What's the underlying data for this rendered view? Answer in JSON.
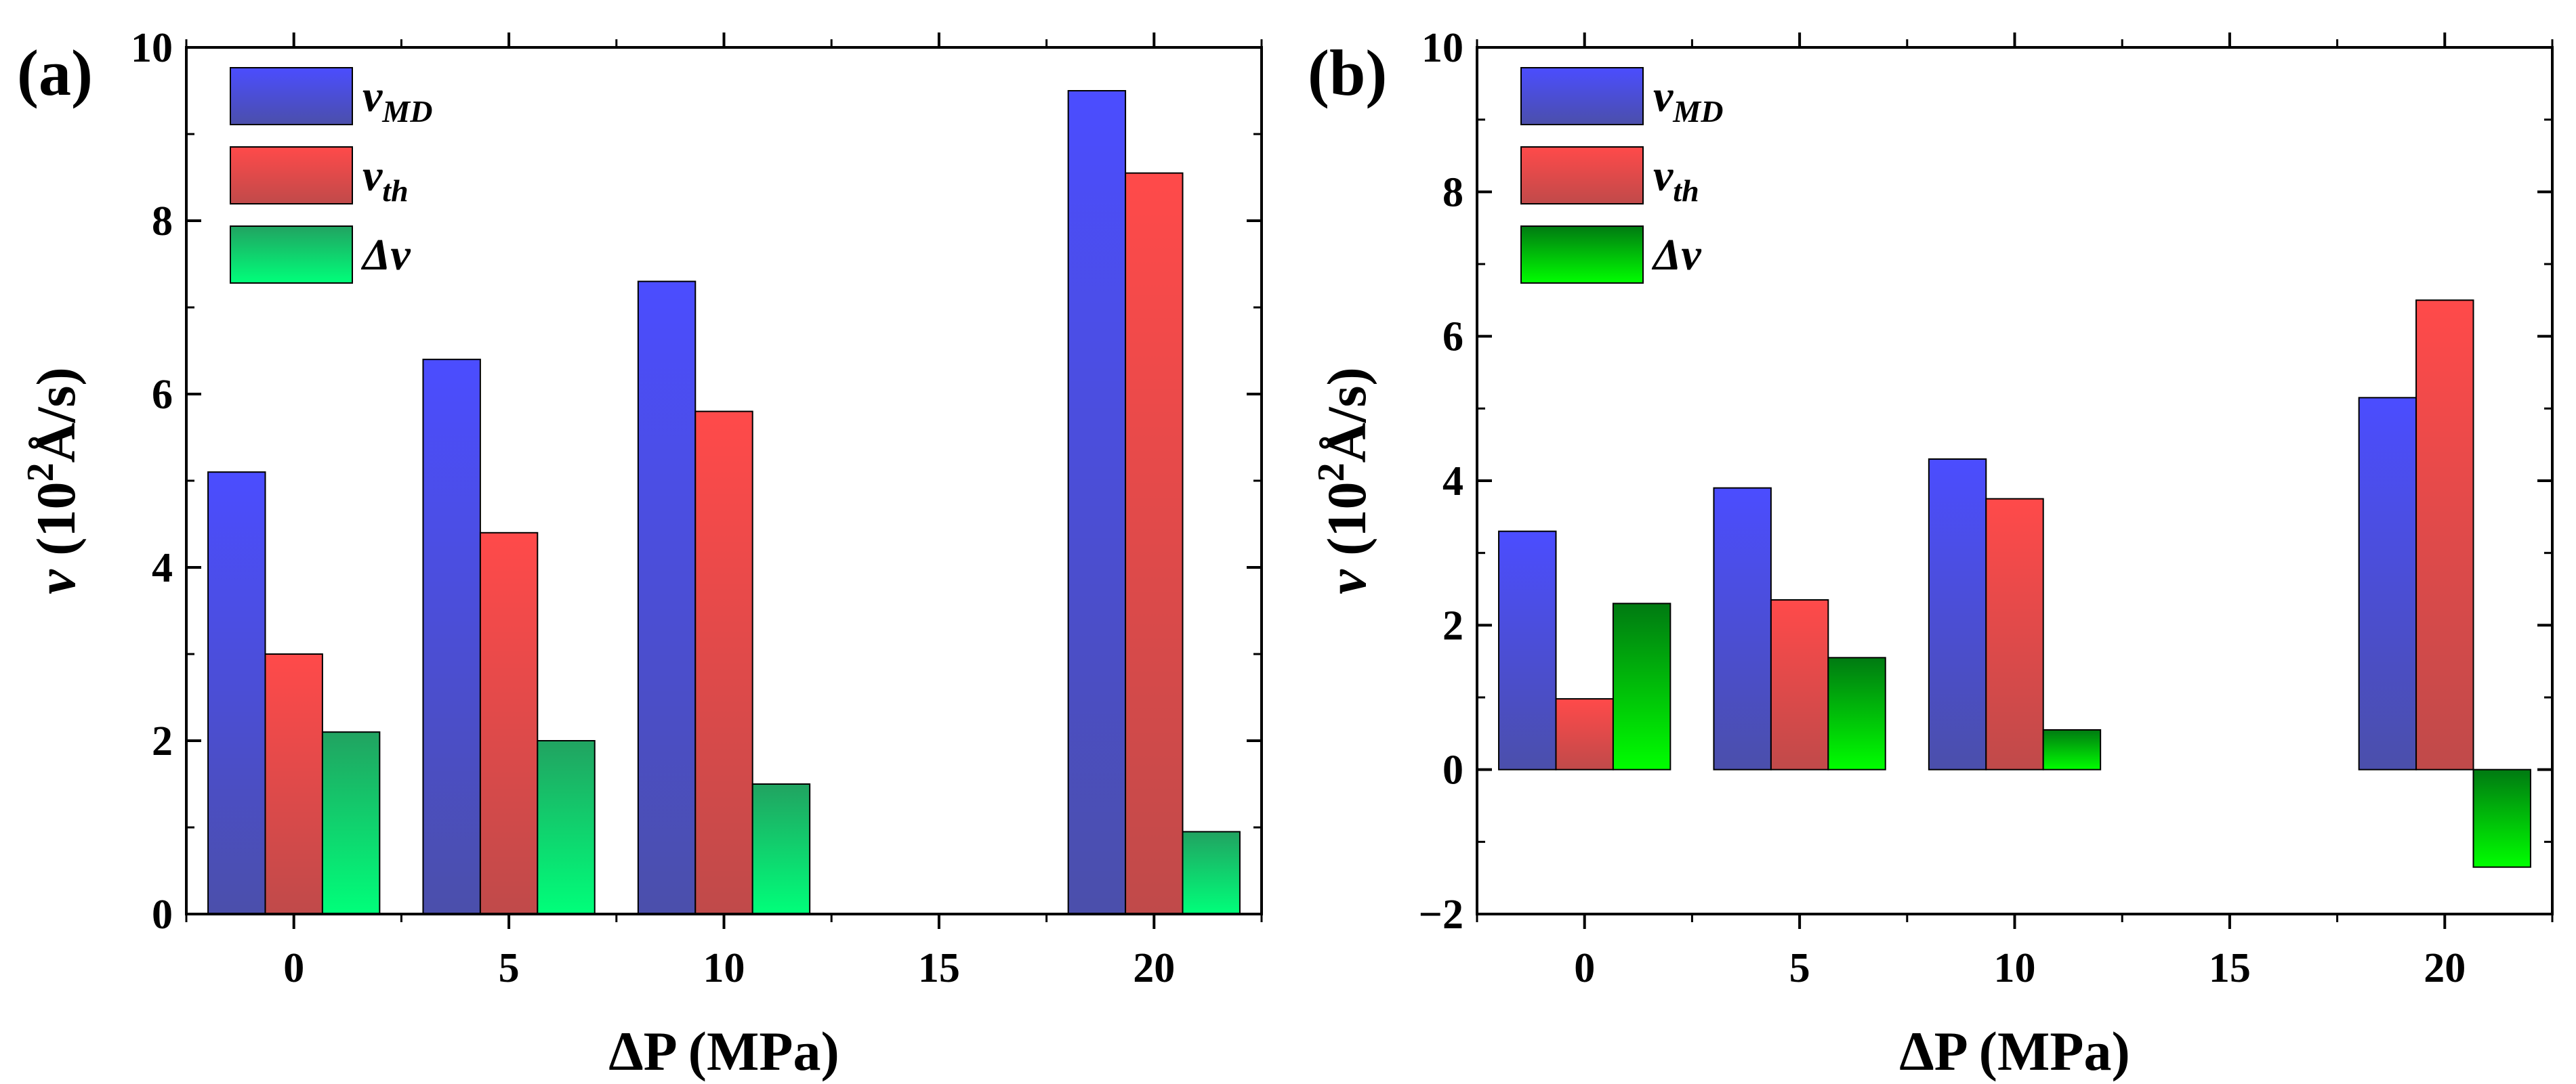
{
  "figure": {
    "panels": [
      "(a)",
      "(b)"
    ]
  },
  "chart_data": [
    {
      "type": "bar",
      "panel_label": "(a)",
      "categories": [
        "0",
        "5",
        "10",
        "20"
      ],
      "category_x": [
        0,
        5,
        10,
        20
      ],
      "xticks": [
        "0",
        "5",
        "10",
        "15",
        "20"
      ],
      "xtick_values": [
        0,
        5,
        10,
        15,
        20
      ],
      "xlim": [
        -2.5,
        22.5
      ],
      "ylim": [
        0,
        10
      ],
      "yticks": [
        "0",
        "2",
        "4",
        "6",
        "8",
        "10"
      ],
      "ytick_values": [
        0,
        2,
        4,
        6,
        8,
        10
      ],
      "xlabel": "ΔP (MPa)",
      "ylabel_main": "v",
      "ylabel_unit": " (10",
      "ylabel_exp": "2",
      "ylabel_tail": "Å/s)",
      "legend_position": "top-left",
      "series": [
        {
          "name": "vMD",
          "symbol": "v",
          "sub": "MD",
          "values": [
            5.1,
            6.4,
            7.3,
            9.5
          ],
          "color_top": "#4b4dff",
          "color_bottom": "#4b4fab"
        },
        {
          "name": "vth",
          "symbol": "v",
          "sub": "th",
          "values": [
            3.0,
            4.4,
            5.8,
            8.55
          ],
          "color_top": "#ff4a4a",
          "color_bottom": "#c04a4a"
        },
        {
          "name": "Δv",
          "symbol": "Δv",
          "sub": "",
          "values": [
            2.1,
            2.0,
            1.5,
            0.95
          ],
          "color_top": "#21a361",
          "color_bottom": "#00ff7a"
        }
      ]
    },
    {
      "type": "bar",
      "panel_label": "(b)",
      "categories": [
        "0",
        "5",
        "10",
        "20"
      ],
      "category_x": [
        0,
        5,
        10,
        20
      ],
      "xticks": [
        "0",
        "5",
        "10",
        "15",
        "20"
      ],
      "xtick_values": [
        0,
        5,
        10,
        15,
        20
      ],
      "xlim": [
        -2.5,
        22.5
      ],
      "ylim": [
        -2,
        10
      ],
      "yticks": [
        "−2",
        "0",
        "2",
        "4",
        "6",
        "8",
        "10"
      ],
      "ytick_values": [
        -2,
        0,
        2,
        4,
        6,
        8,
        10
      ],
      "xlabel": "ΔP (MPa)",
      "ylabel_main": "v",
      "ylabel_unit": " (10",
      "ylabel_exp": "2",
      "ylabel_tail": "Å/s)",
      "legend_position": "top-left",
      "series": [
        {
          "name": "vMD",
          "symbol": "v",
          "sub": "MD",
          "values": [
            3.3,
            3.9,
            4.3,
            5.15
          ],
          "color_top": "#4b4dff",
          "color_bottom": "#4b4fab"
        },
        {
          "name": "vth",
          "symbol": "v",
          "sub": "th",
          "values": [
            0.98,
            2.35,
            3.75,
            6.5
          ],
          "color_top": "#ff4a4a",
          "color_bottom": "#c04a4a"
        },
        {
          "name": "Δv",
          "symbol": "Δv",
          "sub": "",
          "values": [
            2.3,
            1.55,
            0.55,
            -1.35
          ],
          "color_top": "#007a12",
          "color_bottom": "#00ff00"
        }
      ]
    }
  ]
}
